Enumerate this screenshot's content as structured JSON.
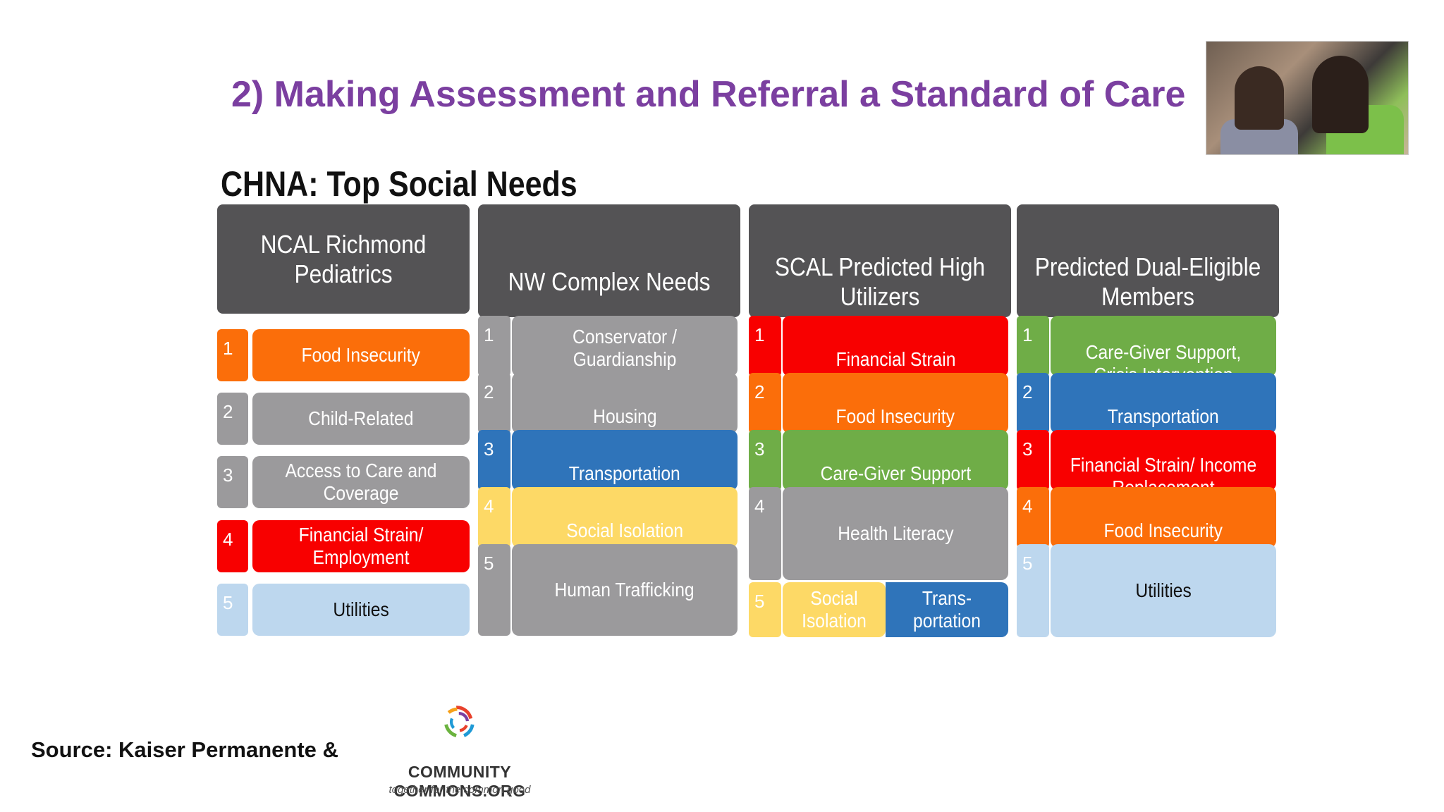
{
  "title": "2) Making Assessment and Referral a Standard of Care",
  "photo_icon": "people-photo",
  "chna_title": "CHNA: Top Social Needs",
  "colors": {
    "gray": "#9b9a9c",
    "orange": "#fb6e0a",
    "red": "#f80000",
    "blue": "#2f74ba",
    "lightblue": "#bdd7ee",
    "yellow": "#fdd966",
    "green": "#6fad47",
    "header": "#545355"
  },
  "columns": [
    {
      "header": "NCAL Richmond Pediatrics",
      "items": [
        {
          "num": "1",
          "label": "Food Insecurity",
          "color": "#fb6e0a"
        },
        {
          "num": "2",
          "label": "Child-Related",
          "color": "#9b9a9c"
        },
        {
          "num": "3",
          "label": "Access to Care and Coverage",
          "color": "#9b9a9c"
        },
        {
          "num": "4",
          "label": "Financial Strain/ Employment",
          "color": "#f80000"
        },
        {
          "num": "5",
          "label": "Utilities",
          "color": "#bdd7ee",
          "dark": true
        }
      ]
    },
    {
      "header": "NW Complex Needs",
      "items": [
        {
          "num": "1",
          "label": "Conservator / Guardianship",
          "color": "#9b9a9c"
        },
        {
          "num": "2",
          "label": "Housing",
          "color": "#9b9a9c"
        },
        {
          "num": "3",
          "label": "Transportation",
          "color": "#2f74ba"
        },
        {
          "num": "4",
          "label": "Social Isolation",
          "color": "#fdd966"
        },
        {
          "num": "5",
          "label": "Human Trafficking",
          "color": "#9b9a9c"
        }
      ]
    },
    {
      "header": "SCAL Predicted High Utilizers",
      "items": [
        {
          "num": "1",
          "label": "Financial Strain",
          "color": "#f80000"
        },
        {
          "num": "2",
          "label": "Food Insecurity",
          "color": "#fb6e0a"
        },
        {
          "num": "3",
          "label": "Care-Giver Support",
          "color": "#6fad47"
        },
        {
          "num": "4",
          "label": "Health Literacy",
          "color": "#9b9a9c"
        },
        {
          "num": "5",
          "label": "Social Isolation",
          "label_b": "Trans-portation",
          "color": "#fdd966",
          "color_b": "#2f74ba"
        }
      ]
    },
    {
      "header": "Predicted Dual-Eligible Members",
      "items": [
        {
          "num": "1",
          "label": "Care-Giver Support, Crisis Intervention",
          "color": "#6fad47"
        },
        {
          "num": "2",
          "label": "Transportation",
          "color": "#2f74ba"
        },
        {
          "num": "3",
          "label": "Financial Strain/ Income Replacement",
          "color": "#f80000"
        },
        {
          "num": "4",
          "label": "Food Insecurity",
          "color": "#fb6e0a"
        },
        {
          "num": "5",
          "label": "Utilities",
          "color": "#bdd7ee",
          "dark": true
        }
      ]
    }
  ],
  "source": "Source:  Kaiser Permanente &",
  "logo": {
    "name": "Community Commons logo",
    "text": "COMMUNITY COMMONS.ORG",
    "tagline": "together for the common good"
  }
}
